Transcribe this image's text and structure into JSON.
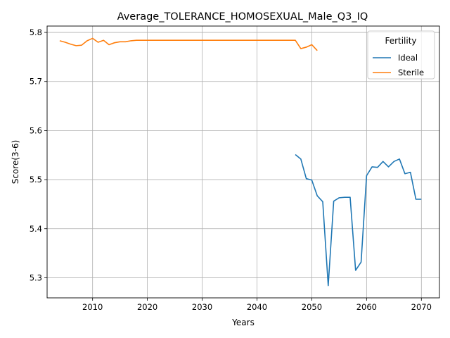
{
  "chart_data": {
    "type": "line",
    "title": "Average_TOLERANCE_HOMOSEXUAL_Male_Q3_IQ",
    "xlabel": "Years",
    "ylabel": "Score(3-6)",
    "xlim": [
      2001.7,
      2073.3
    ],
    "ylim": [
      5.259,
      5.813
    ],
    "xticks": [
      2010,
      2020,
      2030,
      2040,
      2050,
      2060,
      2070
    ],
    "yticks": [
      5.3,
      5.4,
      5.5,
      5.6,
      5.7,
      5.8
    ],
    "grid": true,
    "legend": {
      "title": "Fertility",
      "placement": "top-right"
    },
    "series": [
      {
        "name": "Ideal",
        "color": "#1f77b4",
        "x": [
          2047,
          2048,
          2049,
          2050,
          2051,
          2052,
          2053,
          2054,
          2055,
          2056,
          2057,
          2058,
          2059,
          2060,
          2061,
          2062,
          2063,
          2064,
          2065,
          2066,
          2067,
          2068,
          2069,
          2070
        ],
        "y": [
          5.551,
          5.542,
          5.502,
          5.499,
          5.467,
          5.455,
          5.284,
          5.456,
          5.463,
          5.464,
          5.464,
          5.315,
          5.332,
          5.508,
          5.526,
          5.525,
          5.537,
          5.526,
          5.537,
          5.542,
          5.512,
          5.515,
          5.46,
          5.46
        ]
      },
      {
        "name": "Sterile",
        "color": "#ff7f0e",
        "x": [
          2004,
          2005,
          2006,
          2007,
          2008,
          2009,
          2010,
          2011,
          2012,
          2013,
          2014,
          2015,
          2016,
          2017,
          2018,
          2019,
          2020,
          2025,
          2030,
          2035,
          2040,
          2045,
          2046,
          2047,
          2048,
          2049,
          2050,
          2051
        ],
        "y": [
          5.783,
          5.78,
          5.776,
          5.773,
          5.774,
          5.783,
          5.788,
          5.78,
          5.784,
          5.775,
          5.779,
          5.781,
          5.781,
          5.783,
          5.784,
          5.784,
          5.784,
          5.784,
          5.784,
          5.784,
          5.784,
          5.784,
          5.784,
          5.784,
          5.767,
          5.77,
          5.775,
          5.763
        ]
      }
    ]
  }
}
